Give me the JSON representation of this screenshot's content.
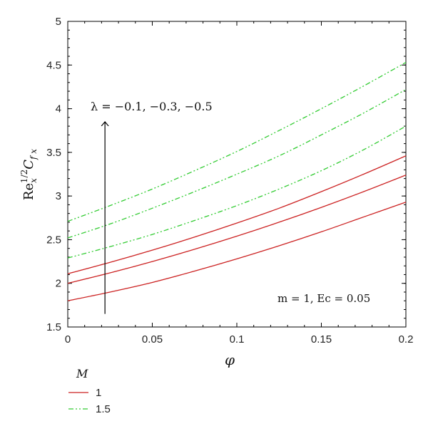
{
  "chart_data": {
    "type": "line",
    "xlabel": "φ",
    "ylabel": {
      "main": "Re",
      "sub": "x",
      "sup": "1/2",
      "c": "C",
      "c_sub": "f x"
    },
    "xlim": [
      0,
      0.2
    ],
    "ylim": [
      1.5,
      5
    ],
    "x_ticks": [
      {
        "v": 0,
        "label": "0"
      },
      {
        "v": 0.05,
        "label": "0.05"
      },
      {
        "v": 0.1,
        "label": "0.1"
      },
      {
        "v": 0.15,
        "label": "0.15"
      },
      {
        "v": 0.2,
        "label": "0.2"
      }
    ],
    "y_ticks": [
      {
        "v": 1.5,
        "label": "1.5"
      },
      {
        "v": 2,
        "label": "2"
      },
      {
        "v": 2.5,
        "label": "2.5"
      },
      {
        "v": 3,
        "label": "3"
      },
      {
        "v": 3.5,
        "label": "3.5"
      },
      {
        "v": 4,
        "label": "4"
      },
      {
        "v": 4.5,
        "label": "4.5"
      },
      {
        "v": 5,
        "label": "5"
      }
    ],
    "grid": false,
    "legend": {
      "title": "M",
      "placement": "bottom-left",
      "entries": [
        {
          "label": "1",
          "color": "#cc2222",
          "style": "solid"
        },
        {
          "label": "1.5",
          "color": "#33cc33",
          "style": "dashdotdot"
        }
      ]
    },
    "annotations": {
      "lambda_label": "λ = −0.1, −0.3, −0.5",
      "params_label": "m = 1, Ec = 0.05",
      "arrow": {
        "x": 0.022,
        "y_from": 1.65,
        "y_to": 3.85
      }
    },
    "x": [
      0,
      0.025,
      0.05,
      0.075,
      0.1,
      0.125,
      0.15,
      0.175,
      0.2
    ],
    "series": [
      {
        "group": "1",
        "values": [
          1.8,
          1.9,
          2.01,
          2.14,
          2.28,
          2.43,
          2.59,
          2.76,
          2.93
        ],
        "color": "#cc2222",
        "style": "solid"
      },
      {
        "group": "1",
        "values": [
          2.0,
          2.12,
          2.25,
          2.39,
          2.54,
          2.7,
          2.87,
          3.05,
          3.24
        ],
        "color": "#cc2222",
        "style": "solid"
      },
      {
        "group": "1",
        "values": [
          2.11,
          2.24,
          2.38,
          2.53,
          2.69,
          2.86,
          3.05,
          3.25,
          3.46
        ],
        "color": "#cc2222",
        "style": "solid"
      },
      {
        "group": "1.5",
        "values": [
          2.29,
          2.42,
          2.56,
          2.72,
          2.89,
          3.08,
          3.29,
          3.53,
          3.8
        ],
        "color": "#33cc33",
        "style": "dashdotdot"
      },
      {
        "group": "1.5",
        "values": [
          2.52,
          2.68,
          2.86,
          3.05,
          3.25,
          3.46,
          3.7,
          3.95,
          4.22
        ],
        "color": "#33cc33",
        "style": "dashdotdot"
      },
      {
        "group": "1.5",
        "values": [
          2.71,
          2.89,
          3.08,
          3.29,
          3.51,
          3.75,
          4.0,
          4.26,
          4.53
        ],
        "color": "#33cc33",
        "style": "dashdotdot"
      }
    ]
  }
}
